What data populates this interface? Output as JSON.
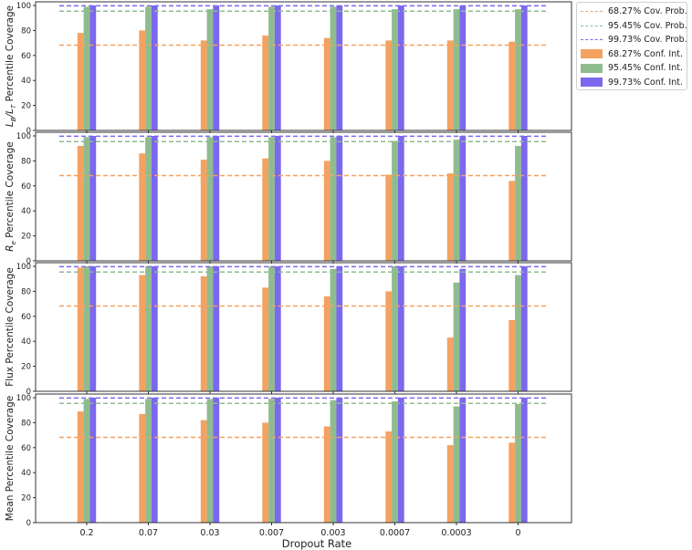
{
  "chart_data": {
    "type": "bar",
    "xlabel": "Dropout Rate",
    "categories": [
      "0.2",
      "0.07",
      "0.03",
      "0.007",
      "0.003",
      "0.0007",
      "0.0003",
      "0"
    ],
    "ylim": [
      0,
      100
    ],
    "yticks": [
      0,
      20,
      40,
      60,
      80,
      100
    ],
    "grid": false,
    "legend_position": "outside-top-right",
    "reference_lines": [
      {
        "name": "68.27% Cov. Prob.",
        "value": 68.27,
        "color": "#f4a261"
      },
      {
        "name": "95.45% Cov. Prob.",
        "value": 95.45,
        "color": "#8fbc8f"
      },
      {
        "name": "99.73% Cov. Prob.",
        "value": 99.73,
        "color": "#7b68ee"
      }
    ],
    "series_names": [
      "68.27% Conf. Int.",
      "95.45% Conf. Int.",
      "99.73% Conf. Int."
    ],
    "series_colors": [
      "#f4a261",
      "#8fbc8f",
      "#7b68ee"
    ],
    "panels": [
      {
        "ylabel_main": "L",
        "ylabel_rest": " Percentile Coverage",
        "ylabel_math": "LB/LT",
        "series": [
          {
            "name": "68.27% Conf. Int.",
            "values": [
              78,
              80,
              72,
              76,
              74,
              72,
              72,
              71
            ]
          },
          {
            "name": "95.45% Conf. Int.",
            "values": [
              99,
              99,
              97,
              99,
              99,
              97,
              97,
              97
            ]
          },
          {
            "name": "99.73% Conf. Int.",
            "values": [
              100,
              100,
              100,
              100,
              100,
              100,
              100,
              100
            ]
          }
        ]
      },
      {
        "ylabel_main": "R",
        "ylabel_rest": " Percentile Coverage",
        "ylabel_math": "Re",
        "series": [
          {
            "name": "68.27% Conf. Int.",
            "values": [
              92,
              86,
              81,
              82,
              80,
              69,
              70,
              64
            ]
          },
          {
            "name": "95.45% Conf. Int.",
            "values": [
              99,
              99,
              99,
              99,
              99,
              96,
              97,
              92
            ]
          },
          {
            "name": "99.73% Conf. Int.",
            "values": [
              100,
              100,
              100,
              100,
              100,
              100,
              100,
              100
            ]
          }
        ]
      },
      {
        "ylabel_plain": "Flux Percentile Coverage",
        "series": [
          {
            "name": "68.27% Conf. Int.",
            "values": [
              99,
              93,
              92,
              83,
              76,
              80,
              43,
              57
            ]
          },
          {
            "name": "95.45% Conf. Int.",
            "values": [
              100,
              100,
              100,
              100,
              98,
              100,
              87,
              93
            ]
          },
          {
            "name": "99.73% Conf. Int.",
            "values": [
              100,
              100,
              100,
              100,
              100,
              100,
              98,
              100
            ]
          }
        ]
      },
      {
        "ylabel_plain": "Mean Percentile Coverage",
        "series": [
          {
            "name": "68.27% Conf. Int.",
            "values": [
              89,
              87,
              82,
              80,
              77,
              73,
              62,
              64
            ]
          },
          {
            "name": "95.45% Conf. Int.",
            "values": [
              99,
              99,
              99,
              99,
              98,
              97,
              93,
              95
            ]
          },
          {
            "name": "99.73% Conf. Int.",
            "values": [
              100,
              100,
              100,
              100,
              100,
              100,
              100,
              100
            ]
          }
        ]
      }
    ]
  },
  "legend": {
    "items": [
      {
        "label": "68.27% Cov. Prob.",
        "kind": "dash",
        "color": "#f4a261"
      },
      {
        "label": "95.45% Cov. Prob.",
        "kind": "dash",
        "color": "#8fbc8f"
      },
      {
        "label": "99.73% Cov. Prob.",
        "kind": "dash",
        "color": "#7b68ee"
      },
      {
        "label": "68.27% Conf. Int.",
        "kind": "patch",
        "color": "#f4a261"
      },
      {
        "label": "95.45% Conf. Int.",
        "kind": "patch",
        "color": "#8fbc8f"
      },
      {
        "label": "99.73% Conf. Int.",
        "kind": "patch",
        "color": "#7b68ee"
      }
    ]
  }
}
